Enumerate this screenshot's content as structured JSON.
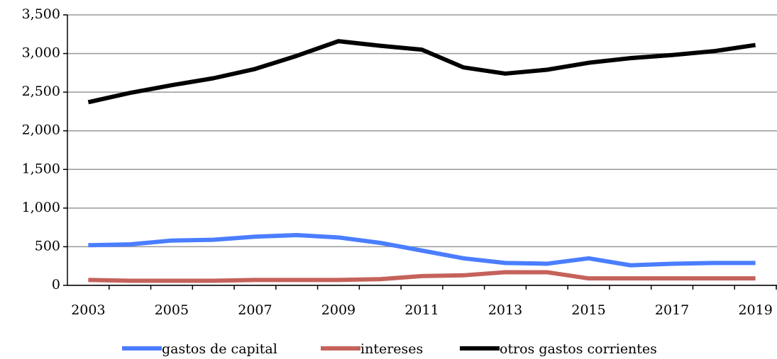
{
  "chart_data": {
    "type": "line",
    "categories": [
      "2003",
      null,
      "2005",
      null,
      "2007",
      null,
      "2009",
      null,
      "2011",
      null,
      "2013",
      null,
      "2015",
      null,
      "2017",
      null,
      "2019"
    ],
    "series": [
      {
        "name": "gastos de capital",
        "color": "#4a7eff",
        "values": [
          520,
          530,
          580,
          590,
          630,
          650,
          620,
          550,
          450,
          350,
          290,
          280,
          350,
          260,
          280,
          290,
          290
        ]
      },
      {
        "name": "intereses",
        "color": "#c5625b",
        "values": [
          70,
          60,
          60,
          60,
          70,
          70,
          70,
          80,
          120,
          130,
          170,
          170,
          90,
          90,
          90,
          90,
          90
        ]
      },
      {
        "name": "otros gastos corrientes",
        "color": "#000000",
        "values": [
          2370,
          2490,
          2590,
          2680,
          2800,
          2970,
          3160,
          3100,
          3050,
          2820,
          2740,
          2790,
          2880,
          2940,
          2980,
          3030,
          3110
        ]
      }
    ],
    "ylim": [
      0,
      3500
    ],
    "yticks": [
      0,
      500,
      {
        "value": 1000,
        "label": "1,000"
      },
      {
        "value": 1500,
        "label": "1,500"
      },
      {
        "value": 2000,
        "label": "2,000"
      },
      {
        "value": 2500,
        "label": "2,500"
      },
      {
        "value": 3000,
        "label": "3,000"
      },
      {
        "value": 3500,
        "label": "3,500"
      }
    ],
    "grid": true,
    "legend": "bottom"
  }
}
